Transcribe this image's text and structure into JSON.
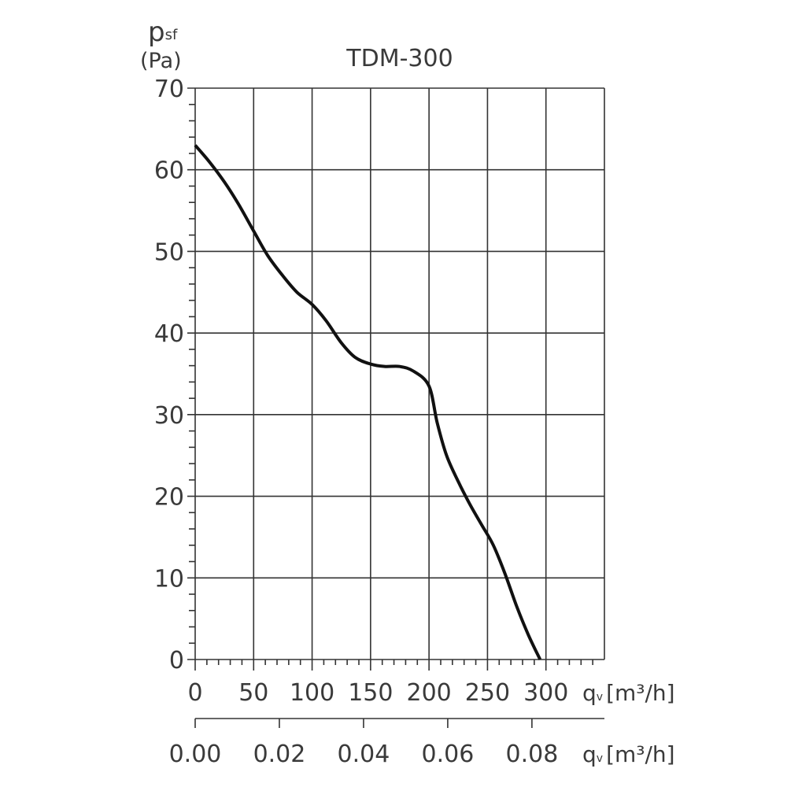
{
  "chart_data": {
    "type": "line",
    "title": "TDM-300",
    "ylabel_main": "p",
    "ylabel_sub": "sf",
    "ylabel_unit": "(Pa)",
    "xlabel_main": "q",
    "xlabel_sub": "v",
    "xlabel_unit": "[m³/h]",
    "x2label_main": "q",
    "x2label_sub": "v",
    "x2label_unit": "[m³/h]",
    "xlim": [
      0,
      350
    ],
    "ylim": [
      0,
      70
    ],
    "grid": true,
    "x_ticks": [
      0,
      50,
      100,
      150,
      200,
      250,
      300
    ],
    "y_ticks": [
      0,
      10,
      20,
      30,
      40,
      50,
      60,
      70
    ],
    "x2_ticks": [
      "0.00",
      "0.02",
      "0.04",
      "0.06",
      "0.08"
    ],
    "x2_tick_values_m3s": [
      0,
      0.02,
      0.04,
      0.06,
      0.08
    ],
    "line_color": "#111111",
    "series": [
      {
        "x": [
          0,
          12,
          25,
          37,
          50,
          62,
          75,
          87,
          100,
          112,
          125,
          137,
          150,
          162,
          175,
          187,
          200,
          207,
          215,
          225,
          235,
          245,
          255,
          265,
          275,
          285,
          295
        ],
        "y": [
          63,
          61,
          58.5,
          55.8,
          52.5,
          49.5,
          47,
          45,
          43.5,
          41.5,
          38.8,
          37,
          36.2,
          35.9,
          35.9,
          35.3,
          33.5,
          29,
          25,
          21.8,
          19,
          16.5,
          14,
          10.5,
          6.5,
          3,
          0
        ]
      }
    ]
  }
}
